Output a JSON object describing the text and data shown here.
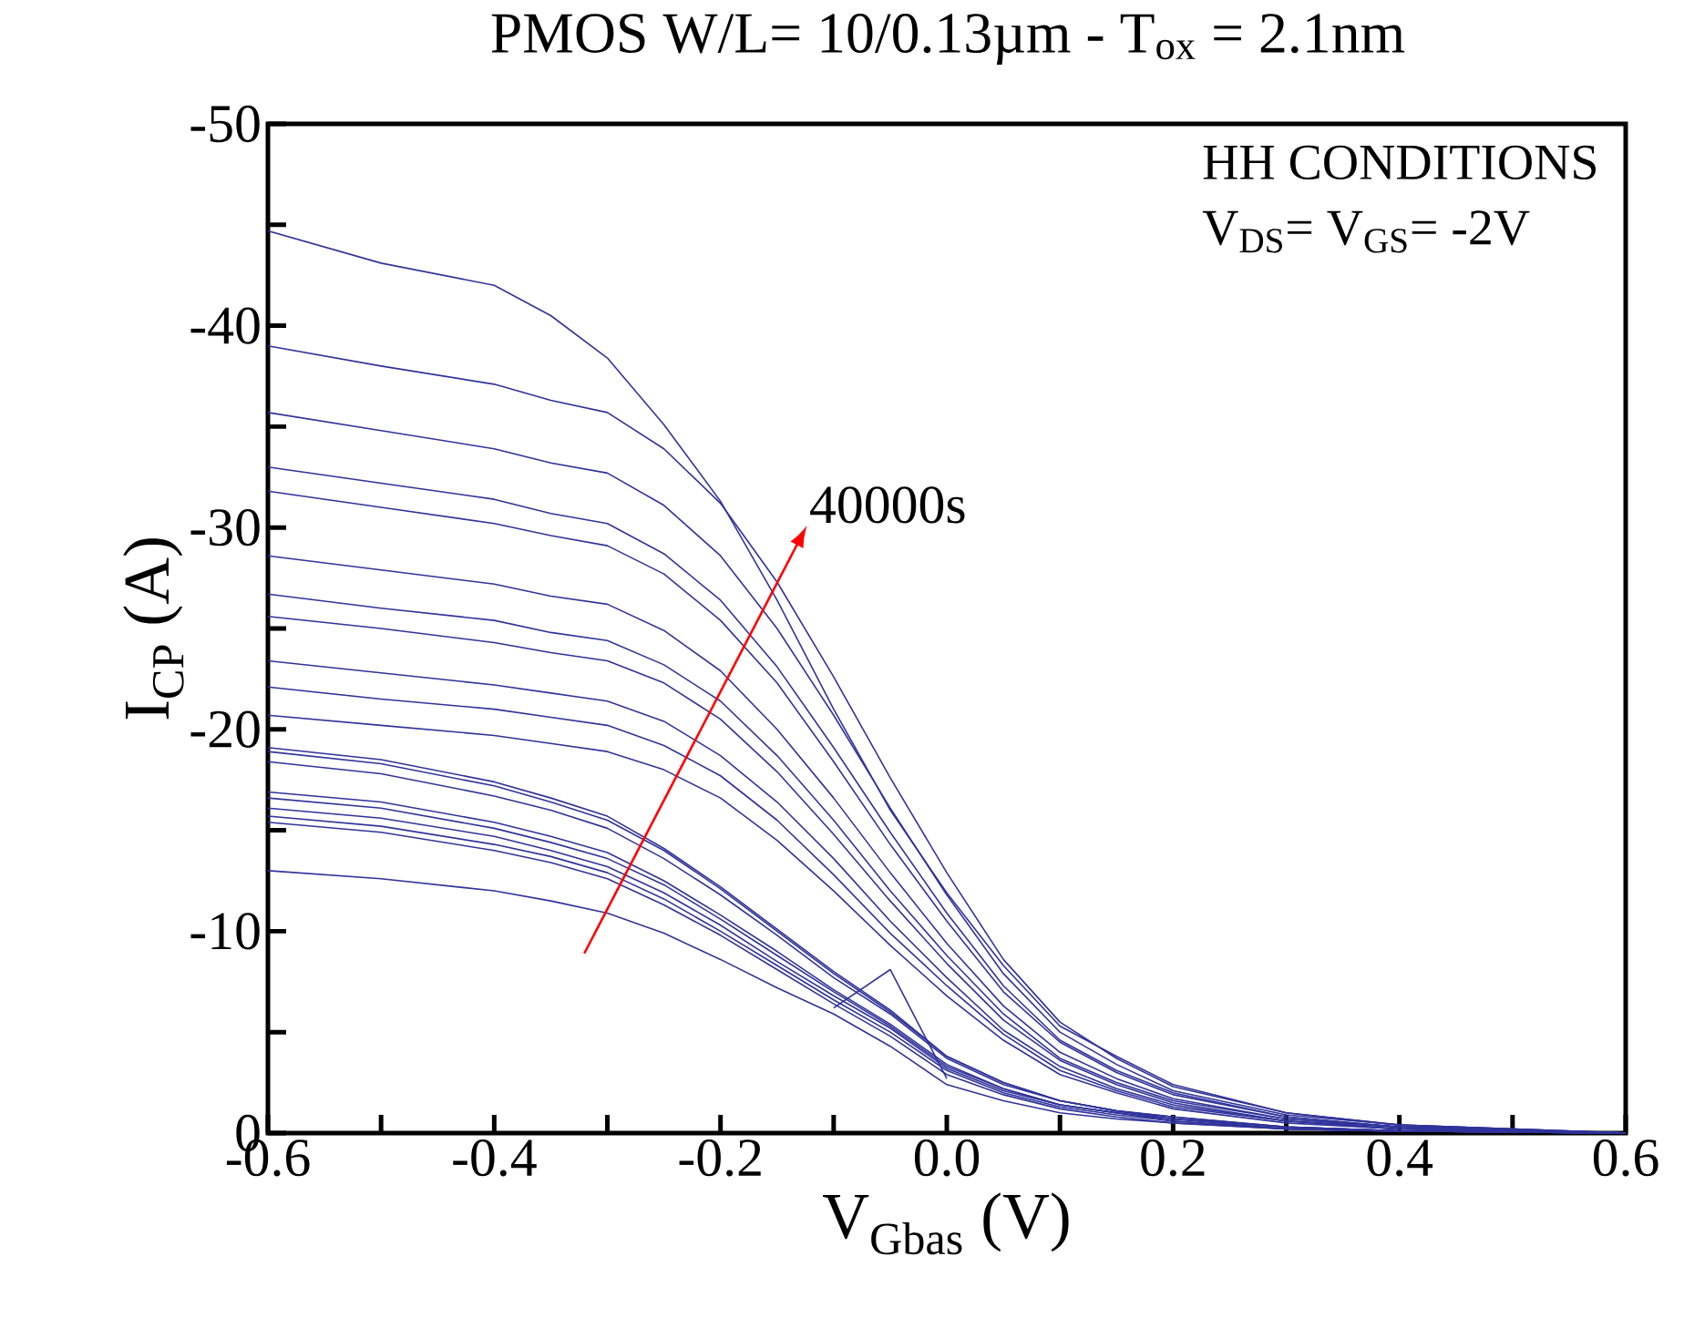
{
  "chart_data": {
    "type": "line",
    "title": "PMOS W/L= 10/0.13µm  -  T$_{ox}$ = 2.1nm",
    "xlabel": "V$_{Gbas}$ (V)",
    "ylabel": "I$_{CP}$ (A)",
    "annotations": [
      "HH CONDITIONS",
      "V$_{DS}$= V$_{GS}$= -2V",
      "40000s"
    ],
    "x": [
      -0.6,
      -0.5,
      -0.4,
      -0.35,
      -0.3,
      -0.25,
      -0.2,
      -0.15,
      -0.1,
      -0.05,
      0,
      0.05,
      0.1,
      0.15,
      0.2,
      0.3,
      0.4,
      0.6
    ],
    "xlim": [
      -0.6,
      0.6
    ],
    "ylim": [
      0,
      -50
    ],
    "xticks": [
      -0.6,
      {
        "value": -0.5,
        "label": null
      },
      -0.4,
      {
        "value": -0.3,
        "label": null
      },
      -0.2,
      {
        "value": -0.1,
        "label": null
      },
      {
        "value": 0,
        "label": "0.0"
      },
      {
        "value": 0.1,
        "label": null
      },
      0.2,
      {
        "value": 0.3,
        "label": null
      },
      0.4,
      {
        "value": 0.5,
        "label": null
      },
      0.6
    ],
    "yticks": [
      0,
      {
        "value": -5,
        "label": null
      },
      -10,
      {
        "value": -15,
        "label": null
      },
      -20,
      {
        "value": -25,
        "label": null
      },
      -30,
      {
        "value": -35,
        "label": null
      },
      -40,
      {
        "value": -45,
        "label": null
      },
      -50
    ],
    "grid": false,
    "marker": "none",
    "line_style": "solid",
    "series": [
      {
        "color": "#30339a",
        "values": [
          -44.7,
          -43.1,
          -42.0,
          -40.5,
          -38.4,
          -35.1,
          -31.3,
          -26.4,
          -21.0,
          -16.0,
          -11.9,
          -8.3,
          -5.3,
          -3.8,
          -2.4,
          -1.0,
          -0.4,
          0
        ]
      },
      {
        "color": "#30339a",
        "values": [
          -39.0,
          -38.0,
          -37.1,
          -36.3,
          -35.7,
          -33.9,
          -31.2,
          -27.3,
          -22.6,
          -17.6,
          -12.9,
          -8.6,
          -5.5,
          -3.7,
          -2.3,
          -1.0,
          -0.4,
          0
        ]
      },
      {
        "color": "#30339a",
        "values": [
          -35.7,
          -34.8,
          -33.9,
          -33.2,
          -32.7,
          -31.1,
          -28.6,
          -25.0,
          -20.7,
          -16.1,
          -11.8,
          -7.9,
          -5.0,
          -3.4,
          -2.1,
          -0.9,
          -0.4,
          0
        ]
      },
      {
        "color": "#30339a",
        "values": [
          -33.0,
          -32.2,
          -31.4,
          -30.7,
          -30.2,
          -28.7,
          -26.4,
          -23.1,
          -19.1,
          -14.9,
          -10.9,
          -7.3,
          -4.6,
          -3.1,
          -2.0,
          -0.8,
          -0.3,
          0
        ]
      },
      {
        "color": "#30339a",
        "values": [
          -31.8,
          -31.0,
          -30.2,
          -29.6,
          -29.1,
          -27.7,
          -25.4,
          -22.3,
          -18.4,
          -14.3,
          -10.5,
          -7.0,
          -4.5,
          -3.0,
          -1.9,
          -0.8,
          -0.3,
          0
        ]
      },
      {
        "color": "#30339a",
        "values": [
          -28.6,
          -27.9,
          -27.2,
          -26.6,
          -26.2,
          -24.9,
          -22.9,
          -20.0,
          -16.6,
          -12.9,
          -9.4,
          -6.3,
          -4.0,
          -2.7,
          -1.7,
          -0.7,
          -0.3,
          0
        ]
      },
      {
        "color": "#30339a",
        "values": [
          -26.7,
          -26.0,
          -25.4,
          -24.8,
          -24.4,
          -23.2,
          -21.4,
          -18.7,
          -15.5,
          -12.0,
          -8.8,
          -5.9,
          -3.7,
          -2.5,
          -1.6,
          -0.7,
          -0.3,
          0
        ]
      },
      {
        "color": "#30339a",
        "values": [
          -25.6,
          -25.0,
          -24.3,
          -23.8,
          -23.4,
          -22.3,
          -20.5,
          -17.9,
          -14.8,
          -11.5,
          -8.4,
          -5.6,
          -3.6,
          -2.4,
          -1.5,
          -0.6,
          -0.3,
          0
        ]
      },
      {
        "color": "#30339a",
        "values": [
          -23.4,
          -22.8,
          -22.2,
          -21.8,
          -21.4,
          -20.4,
          -18.7,
          -16.4,
          -13.6,
          -10.5,
          -7.7,
          -5.1,
          -3.3,
          -2.2,
          -1.4,
          -0.6,
          -0.2,
          0
        ]
      },
      {
        "color": "#30339a",
        "values": [
          -22.1,
          -21.5,
          -21.0,
          -20.6,
          -20.2,
          -19.2,
          -17.7,
          -15.5,
          -12.8,
          -9.9,
          -7.3,
          -4.9,
          -3.1,
          -2.1,
          -1.3,
          -0.6,
          -0.2,
          0
        ]
      },
      {
        "color": "#30339a",
        "values": [
          -20.7,
          -20.2,
          -19.7,
          -19.3,
          -18.9,
          -18.0,
          -16.6,
          -14.5,
          -12.0,
          -9.3,
          -6.8,
          -4.6,
          -2.9,
          -2.0,
          -1.2,
          -0.5,
          -0.2,
          0
        ]
      },
      {
        "color": "#30339a",
        "values": [
          -19.1,
          -18.5,
          -17.4,
          -16.6,
          -15.7,
          -14.1,
          -12.2,
          -10.1,
          -8.0,
          -6.1,
          -3.8,
          -2.5,
          -1.6,
          -1.1,
          -0.8,
          -0.3,
          -0.1,
          0
        ]
      },
      {
        "color": "#30339a",
        "values": [
          -18.9,
          -18.3,
          -17.2,
          -16.4,
          -15.5,
          -14.0,
          -12.1,
          -10.0,
          -7.9,
          -6.0,
          -3.8,
          -2.5,
          -1.6,
          -1.1,
          -0.8,
          -0.3,
          -0.1,
          0
        ]
      },
      {
        "color": "#30339a",
        "values": [
          -18.4,
          -17.8,
          -16.7,
          -16.0,
          -15.1,
          -13.6,
          -11.8,
          -9.8,
          -7.7,
          -5.9,
          -3.7,
          -2.4,
          -1.6,
          -1.1,
          -0.7,
          -0.3,
          -0.1,
          0
        ]
      },
      {
        "color": "#30339a",
        "values": [
          -16.9,
          -16.4,
          -15.4,
          -14.7,
          -13.9,
          -12.5,
          -10.8,
          -9.0,
          -7.1,
          -5.4,
          -3.4,
          -2.2,
          -1.4,
          -1.0,
          -0.7,
          -0.3,
          -0.1,
          0
        ]
      },
      {
        "color": "#30339a",
        "values": [
          -16.6,
          -16.1,
          -15.1,
          -14.4,
          -13.6,
          -12.3,
          -10.6,
          -8.8,
          -7.0,
          -5.3,
          -3.3,
          -2.2,
          -1.4,
          -1.0,
          -0.7,
          -0.2,
          -0.1,
          0
        ]
      },
      {
        "color": "#30339a",
        "values": [
          -16.1,
          -15.6,
          -14.7,
          -14.0,
          -13.2,
          -11.9,
          -10.3,
          -8.5,
          -6.8,
          -5.2,
          -3.2,
          -2.1,
          -1.4,
          -1.0,
          -0.6,
          -0.2,
          -0.1,
          0
        ]
      },
      {
        "color": "#30339a",
        "values": [
          -15.7,
          -15.2,
          -14.3,
          -13.7,
          -12.9,
          -11.6,
          -10.0,
          -8.3,
          -6.6,
          -5.0,
          -3.1,
          -2.0,
          -1.3,
          -0.9,
          -0.6,
          -0.2,
          -0.1,
          0
        ]
      },
      {
        "color": "#30339a",
        "values": [
          -15.4,
          -14.9,
          -14.0,
          -13.4,
          -12.6,
          -11.3,
          -9.8,
          -8.1,
          -6.4,
          -4.8,
          -2.9,
          -1.9,
          -1.2,
          -0.8,
          -0.5,
          -0.2,
          -0.1,
          0
        ]
      },
      {
        "color": "#30339a",
        "values": [
          -13.0,
          -12.6,
          -12.0,
          -11.5,
          -10.9,
          -9.9,
          -8.6,
          -7.2,
          -5.9,
          -4.3,
          -2.4,
          -1.6,
          -1.0,
          -0.7,
          -0.5,
          -0.2,
          -0.1,
          0
        ]
      },
      {
        "color": "#30339a",
        "x": [
          -0.1,
          -0.05,
          0
        ],
        "values": [
          -6.2,
          -8.1,
          -2.7
        ]
      }
    ]
  }
}
